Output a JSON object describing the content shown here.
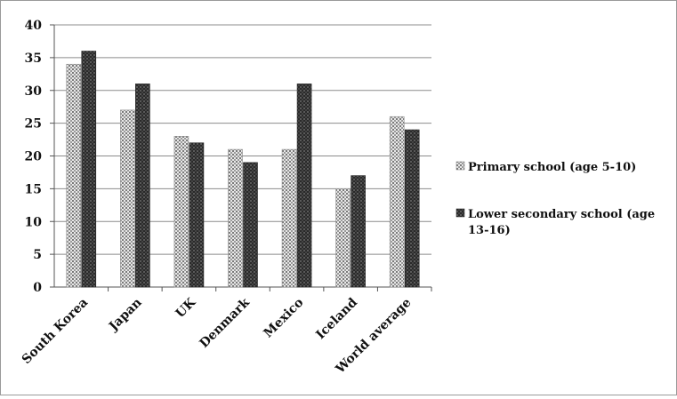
{
  "chart_data": {
    "type": "bar",
    "title": "",
    "xlabel": "",
    "ylabel": "",
    "ylim": [
      0,
      40
    ],
    "yticks": [
      0,
      5,
      10,
      15,
      20,
      25,
      30,
      35,
      40
    ],
    "ytick_labels": [
      "0",
      "5",
      "10",
      "15",
      "20",
      "25",
      "30",
      "35",
      "40"
    ],
    "grid": true,
    "legend_position": "right",
    "categories": [
      "South Korea",
      "Japan",
      "UK",
      "Denmark",
      "Mexico",
      "Iceland",
      "World average"
    ],
    "series": [
      {
        "name": "Primary school (age 5-10)",
        "values": [
          34,
          27,
          23,
          21,
          21,
          15,
          26
        ],
        "color": "#9a9a9a",
        "pattern": "light-hatched"
      },
      {
        "name": "Lower secondary school (age 13-16)",
        "values": [
          36,
          31,
          22,
          19,
          31,
          17,
          24
        ],
        "color": "#3a3a3a",
        "pattern": "dark-checkered"
      }
    ]
  },
  "legend": {
    "items": [
      {
        "line1": "Primary school (age 5-10)",
        "line2": ""
      },
      {
        "line1": "Lower secondary school (age",
        "line2": "13-16)"
      }
    ]
  }
}
